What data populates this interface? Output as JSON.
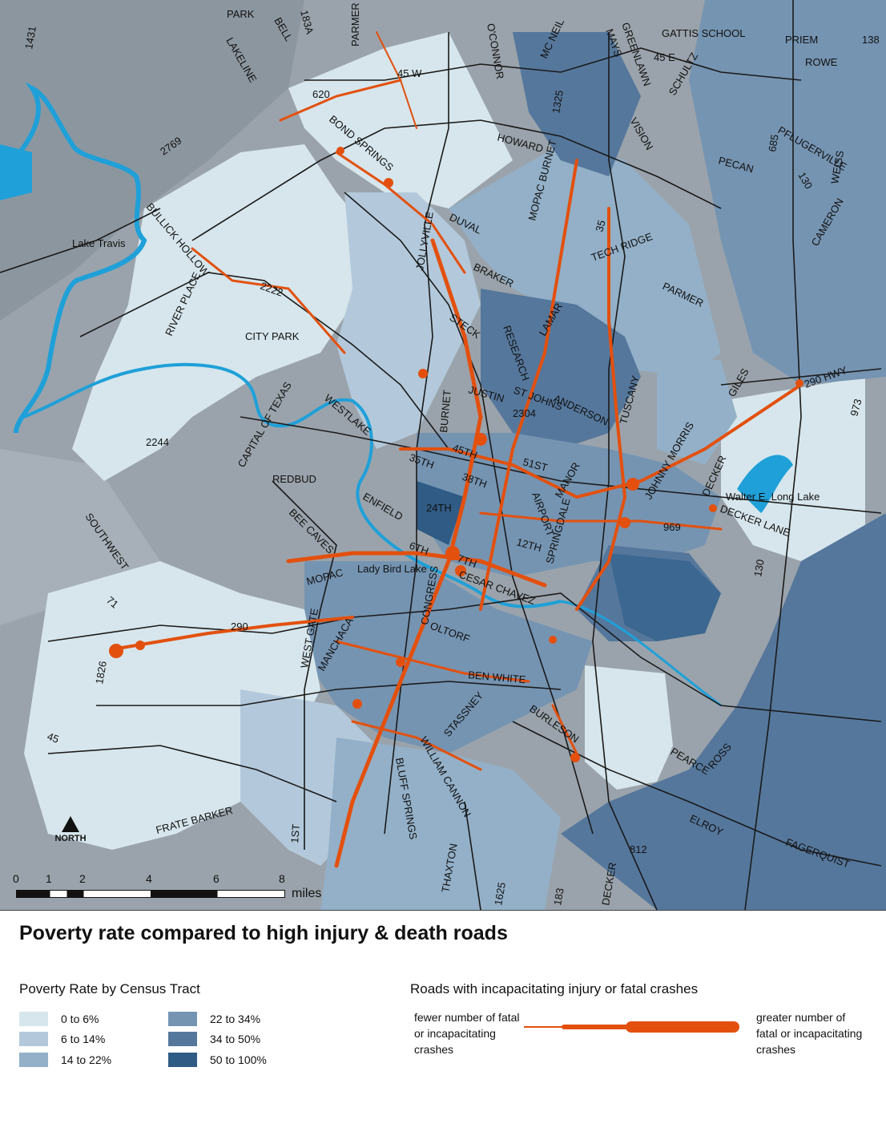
{
  "map": {
    "water_labels": [
      "Lake Travis",
      "Lady Bird Lake",
      "Walter E. Long Lake"
    ],
    "road_labels": [
      "PARK",
      "BELL",
      "183A",
      "LAKELINE",
      "PARMER",
      "O'CONNOR",
      "MC NEIL",
      "MAYS",
      "GREENLAWN",
      "GATTIS SCHOOL",
      "PRIEM",
      "ROWE",
      "138",
      "1431",
      "620",
      "45 W",
      "45 E",
      "SCHULTZ",
      "BOND SPRINGS",
      "HOWARD",
      "1325",
      "VISION",
      "685",
      "PFLUGERVILLE",
      "2769",
      "PECAN",
      "130",
      "WEISS",
      "BULLICK HOLLOW",
      "DUVAL",
      "MOPAC BURNET",
      "35",
      "JOLLYVILLE",
      "BRAKER",
      "TECH RIDGE",
      "CAMERON",
      "RIVER PLACE",
      "2222",
      "PARMER",
      "CITY PARK",
      "STECK",
      "RESEARCH",
      "LAMAR",
      "290 HWY",
      "GILES",
      "JUSTIN",
      "ST JOHNS",
      "ANDERSON",
      "WESTLAKE",
      "CAPITAL OF TEXAS",
      "2244",
      "BURNET",
      "45TH",
      "51ST",
      "TUSCANY",
      "JOHNNY MORRIS",
      "973",
      "35TH",
      "38TH",
      "DECKER",
      "REDBUD",
      "MANOR",
      "ENFIELD",
      "24TH",
      "AIRPORT",
      "SPRINGDALE",
      "BEE CAVES",
      "12TH",
      "969",
      "DECKER LANE",
      "SOUTHWEST",
      "6TH",
      "7TH",
      "CESAR CHAVEZ",
      "MOPAC",
      "CONGRESS",
      "71",
      "290",
      "WEST GATE",
      "MANCHACA",
      "OLTORF",
      "1826",
      "BEN WHITE",
      "STASSNEY",
      "BURLESON",
      "PEARCE",
      "ROSS",
      "45",
      "WILLIAM CANNON",
      "BLUFF SPRINGS",
      "FRATE BARKER",
      "1ST",
      "ELROY",
      "FAGERQUIST",
      "812",
      "THAXTON",
      "1625",
      "DECKER",
      "183",
      "2304",
      "130"
    ],
    "north_label": "NORTH",
    "scale": {
      "ticks": [
        "0",
        "1",
        "2",
        "4",
        "6",
        "8"
      ],
      "unit": "miles"
    }
  },
  "legend": {
    "title": "Poverty rate compared to high injury & death roads",
    "poverty_heading": "Poverty Rate by Census Tract",
    "poverty_classes": [
      {
        "label": "0 to 6%",
        "color": "#d6e6ec"
      },
      {
        "label": "6 to 14%",
        "color": "#b3c9db"
      },
      {
        "label": "14 to 22%",
        "color": "#93b0c8"
      },
      {
        "label": "22 to 34%",
        "color": "#7594b2"
      },
      {
        "label": "34 to 50%",
        "color": "#55779c"
      },
      {
        "label": "50 to 100%",
        "color": "#2f5b84"
      }
    ],
    "roads_heading": "Roads with incapacitating injury or fatal crashes",
    "fewer_note": "fewer number of fatal or incapacitating crashes",
    "greater_note": "greater number of fatal or incapacitating crashes",
    "road_color": "#e3500e"
  }
}
